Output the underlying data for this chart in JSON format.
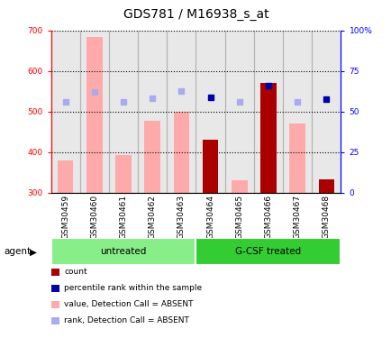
{
  "title": "GDS781 / M16938_s_at",
  "samples": [
    "GSM30459",
    "GSM30460",
    "GSM30461",
    "GSM30462",
    "GSM30463",
    "GSM30464",
    "GSM30465",
    "GSM30466",
    "GSM30467",
    "GSM30468"
  ],
  "ylim_left": [
    300,
    700
  ],
  "ylim_right": [
    0,
    100
  ],
  "yticks_left": [
    300,
    400,
    500,
    600,
    700
  ],
  "yticks_right": [
    0,
    25,
    50,
    75,
    100
  ],
  "ytick_labels_right": [
    "0",
    "25",
    "50",
    "75",
    "100%"
  ],
  "bar_base": 300,
  "value_absent_bars": [
    380,
    685,
    393,
    477,
    500,
    0,
    330,
    0,
    470,
    0
  ],
  "count_bars": [
    0,
    0,
    0,
    0,
    0,
    430,
    0,
    570,
    0,
    333
  ],
  "rank_absent": [
    523,
    548,
    523,
    533,
    550,
    0,
    523,
    0,
    525,
    0
  ],
  "percentile_present": [
    0,
    0,
    0,
    0,
    0,
    535,
    0,
    565,
    0,
    530
  ],
  "value_absent_color": "#ffaaaa",
  "count_color": "#aa0000",
  "rank_absent_color": "#aaaaee",
  "percentile_present_color": "#0000aa",
  "groups": [
    {
      "label": "untreated",
      "start": 0,
      "end": 5,
      "color": "#88ee88"
    },
    {
      "label": "G-CSF treated",
      "start": 5,
      "end": 10,
      "color": "#33cc33"
    }
  ],
  "group_label": "agent",
  "legend": [
    {
      "label": "count",
      "color": "#aa0000",
      "marker": "s"
    },
    {
      "label": "percentile rank within the sample",
      "color": "#0000aa",
      "marker": "s"
    },
    {
      "label": "value, Detection Call = ABSENT",
      "color": "#ffaaaa",
      "marker": "s"
    },
    {
      "label": "rank, Detection Call = ABSENT",
      "color": "#aaaaee",
      "marker": "s"
    }
  ],
  "title_fontsize": 10,
  "tick_fontsize": 6.5,
  "label_fontsize": 7.5,
  "legend_fontsize": 6.5
}
